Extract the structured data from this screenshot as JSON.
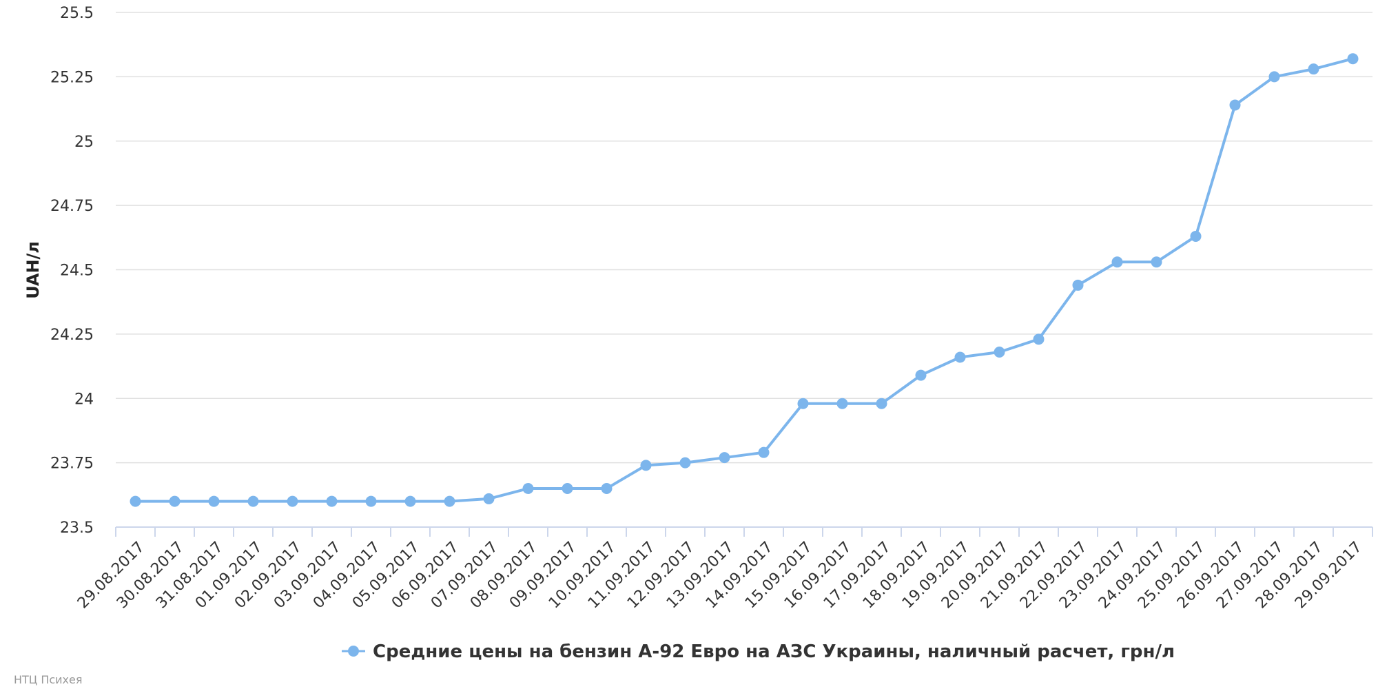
{
  "chart_data": {
    "type": "line",
    "ylabel": "UAH/л",
    "xlabel": "",
    "ylim": [
      23.5,
      25.5
    ],
    "yticks": [
      "23.5",
      "23.75",
      "24",
      "24.25",
      "24.5",
      "24.75",
      "25",
      "25.25",
      "25.5"
    ],
    "grid": true,
    "legend_position": "bottom-center",
    "categories": [
      "29.08.2017",
      "30.08.2017",
      "31.08.2017",
      "01.09.2017",
      "02.09.2017",
      "03.09.2017",
      "04.09.2017",
      "05.09.2017",
      "06.09.2017",
      "07.09.2017",
      "08.09.2017",
      "09.09.2017",
      "10.09.2017",
      "11.09.2017",
      "12.09.2017",
      "13.09.2017",
      "14.09.2017",
      "15.09.2017",
      "16.09.2017",
      "17.09.2017",
      "18.09.2017",
      "19.09.2017",
      "20.09.2017",
      "21.09.2017",
      "22.09.2017",
      "23.09.2017",
      "24.09.2017",
      "25.09.2017",
      "26.09.2017",
      "27.09.2017",
      "28.09.2017",
      "29.09.2017"
    ],
    "series": [
      {
        "name": "Средние цены на бензин А-92 Евро на АЗС Украины, наличный расчет, грн/л",
        "color": "#7cb5ec",
        "values": [
          23.6,
          23.6,
          23.6,
          23.6,
          23.6,
          23.6,
          23.6,
          23.6,
          23.6,
          23.61,
          23.65,
          23.65,
          23.65,
          23.74,
          23.75,
          23.77,
          23.79,
          23.98,
          23.98,
          23.98,
          24.09,
          24.16,
          24.18,
          24.23,
          24.44,
          24.53,
          24.53,
          24.63,
          25.14,
          25.25,
          25.28,
          25.32
        ]
      }
    ]
  },
  "credit": "НТЦ Психея"
}
